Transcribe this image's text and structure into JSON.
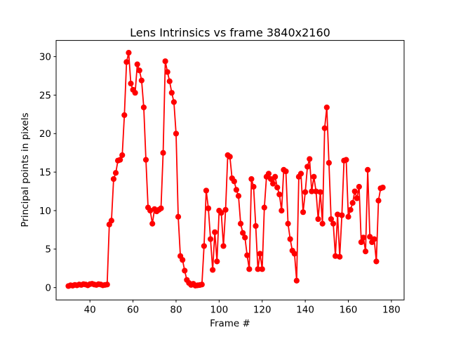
{
  "figure": {
    "background": "#ffffff",
    "text_color": "#000000"
  },
  "chart_data": {
    "type": "line",
    "title": "Lens Intrinsics vs frame 3840x2160",
    "xlabel": "Frame #",
    "ylabel": "Principal points in pixels",
    "line_color": "#ff0000",
    "marker": "o",
    "marker_color": "#ff0000",
    "grid": false,
    "legend_position": "none",
    "x_ticks": [
      40,
      60,
      80,
      100,
      120,
      140,
      160,
      180
    ],
    "y_ticks": [
      0,
      5,
      10,
      15,
      20,
      25,
      30
    ],
    "xlim": [
      24.3,
      185.9
    ],
    "ylim": [
      -1.6,
      32.1
    ],
    "x": [
      30,
      31,
      32,
      33,
      34,
      35,
      36,
      37,
      38,
      39,
      40,
      41,
      42,
      43,
      44,
      45,
      46,
      47,
      48,
      49,
      50,
      51,
      52,
      53,
      54,
      55,
      56,
      57,
      58,
      59,
      60,
      61,
      62,
      63,
      64,
      65,
      66,
      67,
      68,
      69,
      70,
      71,
      72,
      73,
      74,
      75,
      76,
      77,
      78,
      79,
      80,
      81,
      82,
      83,
      84,
      85,
      86,
      87,
      88,
      89,
      90,
      91,
      92,
      93,
      94,
      95,
      96,
      97,
      98,
      99,
      100,
      101,
      102,
      103,
      104,
      105,
      106,
      107,
      108,
      109,
      110,
      111,
      112,
      113,
      114,
      115,
      116,
      117,
      118,
      119,
      120,
      121,
      122,
      123,
      124,
      125,
      126,
      127,
      128,
      129,
      130,
      131,
      132,
      133,
      134,
      135,
      136,
      137,
      138,
      139,
      140,
      141,
      142,
      143,
      144,
      145,
      146,
      147,
      148,
      149,
      150,
      151,
      152,
      153,
      154,
      155,
      156,
      157,
      158,
      159,
      160,
      161,
      162,
      163,
      164,
      165,
      166,
      167,
      168,
      169,
      170,
      171,
      172,
      173,
      174,
      175,
      176
    ],
    "values": [
      0.2,
      0.3,
      0.25,
      0.35,
      0.3,
      0.4,
      0.35,
      0.45,
      0.4,
      0.3,
      0.45,
      0.5,
      0.4,
      0.35,
      0.45,
      0.4,
      0.3,
      0.35,
      0.4,
      8.2,
      8.7,
      14.1,
      14.9,
      16.5,
      16.6,
      17.2,
      22.4,
      29.3,
      30.5,
      26.5,
      25.7,
      25.3,
      29.0,
      28.2,
      26.9,
      23.4,
      16.6,
      10.4,
      10.0,
      8.3,
      10.2,
      9.9,
      10.1,
      10.3,
      17.5,
      29.4,
      28.0,
      26.8,
      25.3,
      24.1,
      20.0,
      9.2,
      4.1,
      3.6,
      2.2,
      1.0,
      0.6,
      0.35,
      0.5,
      0.26,
      0.3,
      0.33,
      0.4,
      5.4,
      12.6,
      10.3,
      6.3,
      2.3,
      7.2,
      3.4,
      10.0,
      9.7,
      5.4,
      10.1,
      17.2,
      17.0,
      14.2,
      13.8,
      12.7,
      11.9,
      8.3,
      7.1,
      6.5,
      4.2,
      2.4,
      14.1,
      13.1,
      8.0,
      2.4,
      4.4,
      2.4,
      10.4,
      14.4,
      14.8,
      14.1,
      13.5,
      14.4,
      13.0,
      12.1,
      10.0,
      15.3,
      15.1,
      8.3,
      6.3,
      4.8,
      4.4,
      0.9,
      14.4,
      14.8,
      9.8,
      12.4,
      15.7,
      16.7,
      12.5,
      14.4,
      12.5,
      8.9,
      12.4,
      8.3,
      20.7,
      23.4,
      16.2,
      8.9,
      8.3,
      4.1,
      9.5,
      4.0,
      9.4,
      16.5,
      16.6,
      9.2,
      10.1,
      11.0,
      12.5,
      11.6,
      13.1,
      5.9,
      6.5,
      4.7,
      15.3,
      6.6,
      5.9,
      6.3,
      3.4,
      11.3,
      12.9,
      13.0
    ]
  }
}
